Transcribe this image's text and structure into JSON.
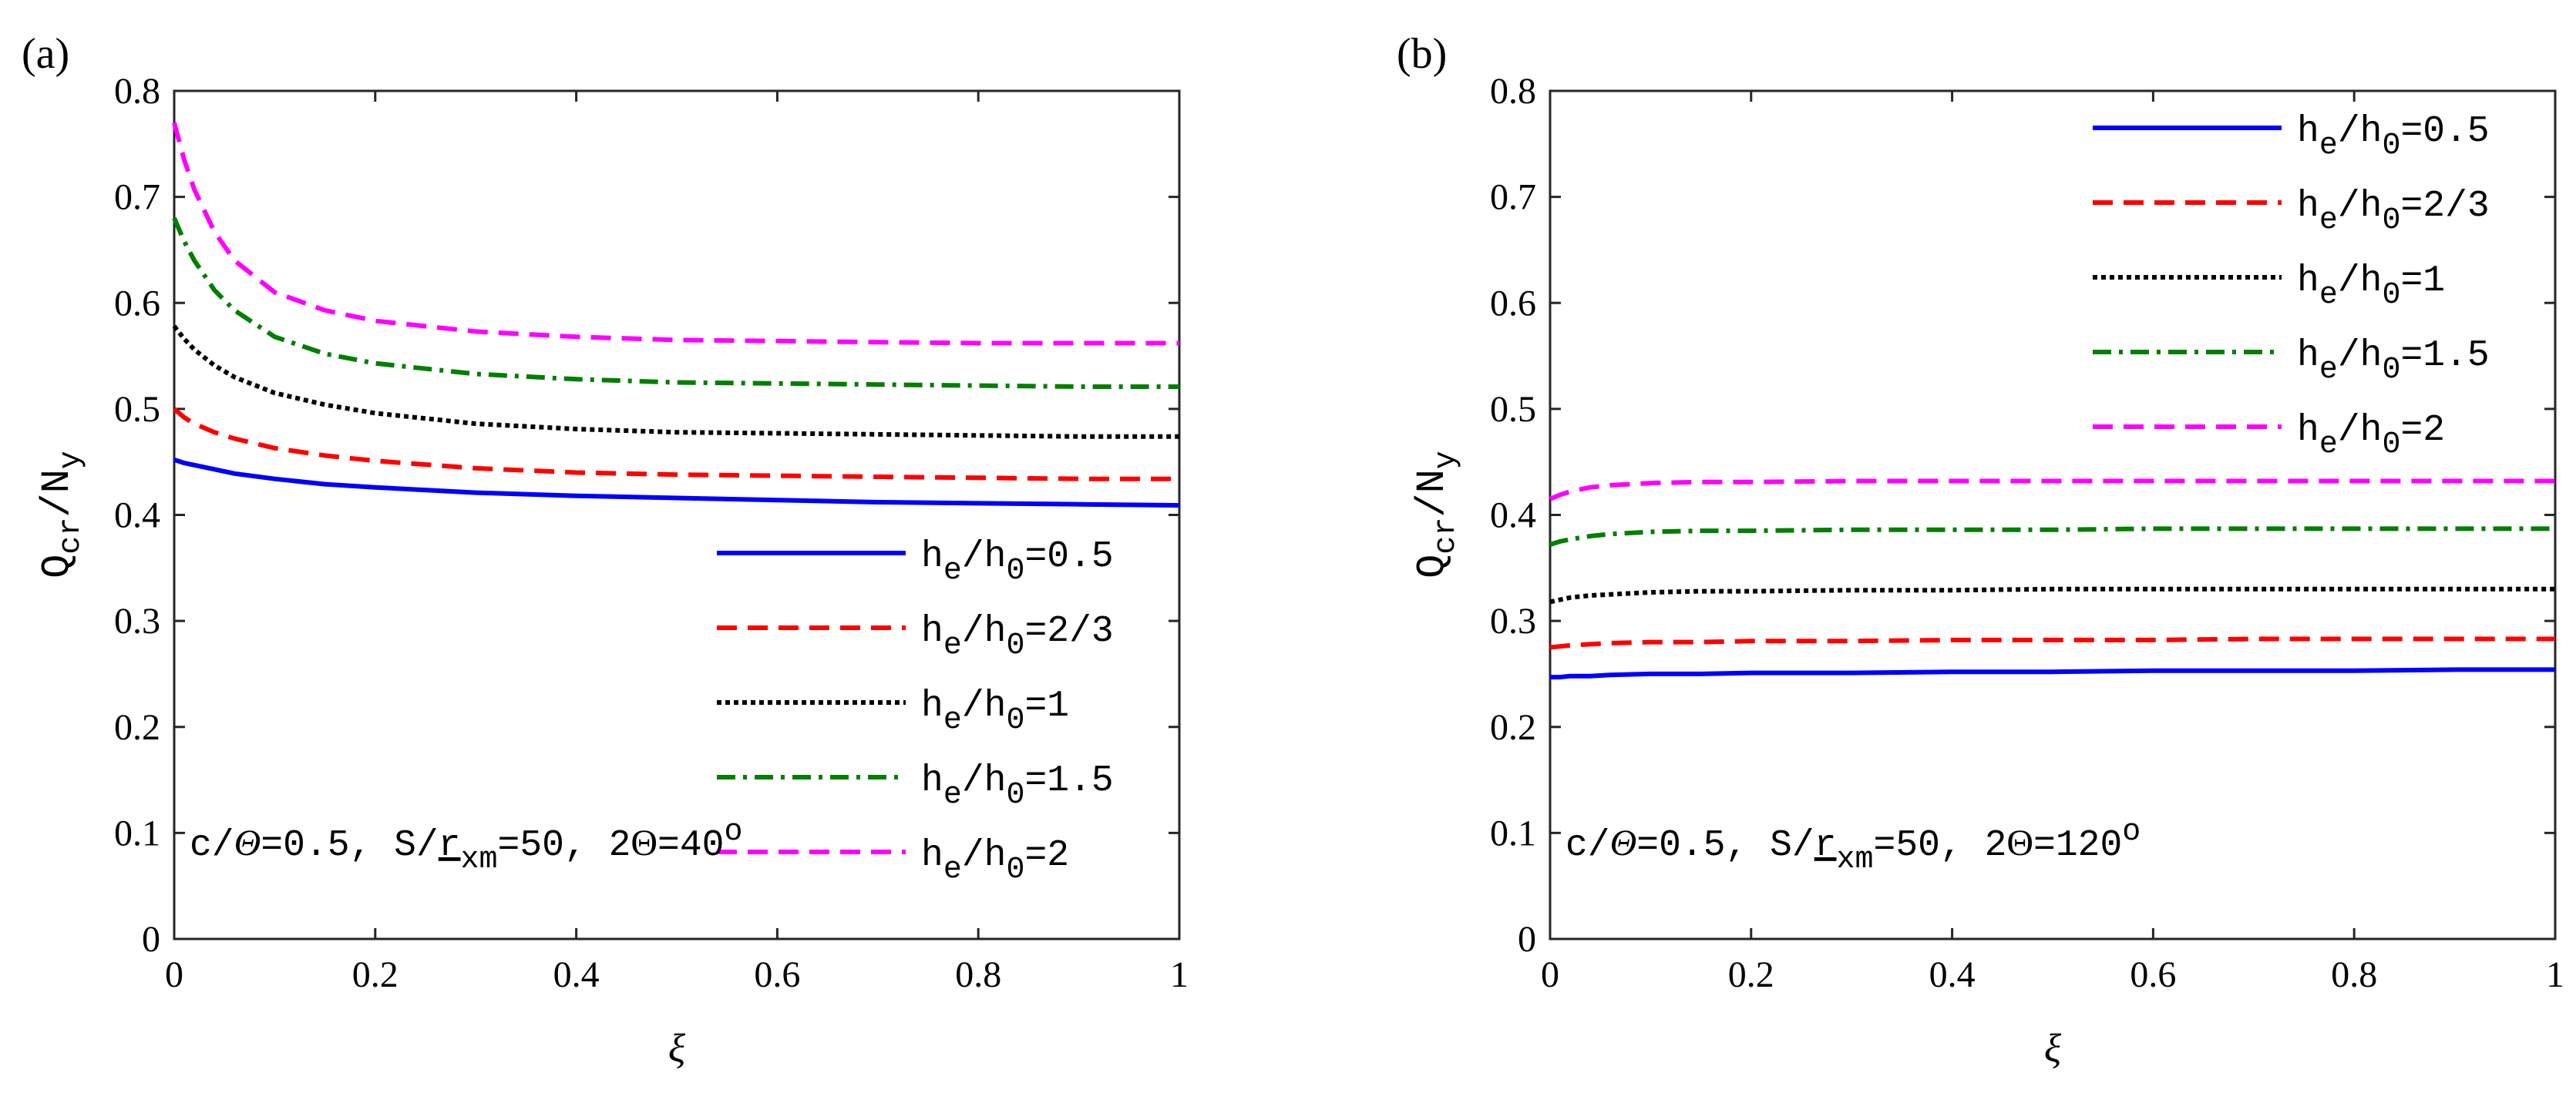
{
  "chart_data": [
    {
      "type": "line",
      "panel_label": "(a)",
      "xlabel": "ξ",
      "ylabel": {
        "main": "Q",
        "sub1": "cr",
        "sep": "/N",
        "sub2": "y"
      },
      "xlim": [
        0,
        1
      ],
      "ylim": [
        0,
        0.8
      ],
      "xticks": [
        "0",
        "0.2",
        "0.4",
        "0.6",
        "0.8",
        "1"
      ],
      "yticks": [
        "0",
        "0.1",
        "0.2",
        "0.3",
        "0.4",
        "0.5",
        "0.6",
        "0.7",
        "0.8"
      ],
      "grid": false,
      "legend_position": "bottom-right",
      "annotation": {
        "p1": "c/",
        "theta": "Θ",
        "p2": "=0.5, S/",
        "r": "r",
        "sub": "xm",
        "p3": "=50, 2",
        "theta2": "Θ",
        "p4": "=40",
        "sup": "o"
      },
      "x": [
        0,
        0.01,
        0.02,
        0.04,
        0.06,
        0.1,
        0.15,
        0.2,
        0.3,
        0.4,
        0.5,
        0.6,
        0.7,
        0.8,
        0.9,
        1.0
      ],
      "series": [
        {
          "name": "he/h0=0.5",
          "label": {
            "h": "h",
            "s1": "e",
            "mid": "/h",
            "s2": "0",
            "val": "=0.5"
          },
          "color": "#0000ff",
          "dash": "solid",
          "values": [
            0.452,
            0.449,
            0.447,
            0.443,
            0.439,
            0.434,
            0.429,
            0.426,
            0.421,
            0.418,
            0.416,
            0.414,
            0.412,
            0.411,
            0.41,
            0.409
          ]
        },
        {
          "name": "he/h0=2/3",
          "label": {
            "h": "h",
            "s1": "e",
            "mid": "/h",
            "s2": "0",
            "val": "=2/3"
          },
          "color": "#ff0000",
          "dash": "dashed",
          "values": [
            0.5,
            0.492,
            0.486,
            0.478,
            0.472,
            0.463,
            0.456,
            0.451,
            0.444,
            0.44,
            0.438,
            0.437,
            0.436,
            0.435,
            0.434,
            0.434
          ]
        },
        {
          "name": "he/h0=1",
          "label": {
            "h": "h",
            "s1": "e",
            "mid": "/h",
            "s2": "0",
            "val": "=1"
          },
          "color": "#000000",
          "dash": "dotted",
          "values": [
            0.578,
            0.566,
            0.556,
            0.541,
            0.53,
            0.515,
            0.504,
            0.496,
            0.486,
            0.481,
            0.478,
            0.477,
            0.476,
            0.475,
            0.474,
            0.474
          ]
        },
        {
          "name": "he/h0=1.5",
          "label": {
            "h": "h",
            "s1": "e",
            "mid": "/h",
            "s2": "0",
            "val": "=1.5"
          },
          "color": "#007f00",
          "dash": "dashdot",
          "values": [
            0.68,
            0.658,
            0.64,
            0.612,
            0.593,
            0.568,
            0.552,
            0.543,
            0.533,
            0.528,
            0.525,
            0.524,
            0.523,
            0.522,
            0.521,
            0.521
          ]
        },
        {
          "name": "he/h0=2",
          "label": {
            "h": "h",
            "s1": "e",
            "mid": "/h",
            "s2": "0",
            "val": "=2"
          },
          "color": "#ff00ff",
          "dash": "dashed",
          "values": [
            0.77,
            0.735,
            0.707,
            0.667,
            0.64,
            0.61,
            0.593,
            0.583,
            0.573,
            0.568,
            0.565,
            0.564,
            0.563,
            0.562,
            0.562,
            0.562
          ]
        }
      ]
    },
    {
      "type": "line",
      "panel_label": "(b)",
      "xlabel": "ξ",
      "ylabel": {
        "main": "Q",
        "sub1": "cr",
        "sep": "/N",
        "sub2": "y"
      },
      "xlim": [
        0,
        1
      ],
      "ylim": [
        0,
        0.8
      ],
      "xticks": [
        "0",
        "0.2",
        "0.4",
        "0.6",
        "0.8",
        "1"
      ],
      "yticks": [
        "0",
        "0.1",
        "0.2",
        "0.3",
        "0.4",
        "0.5",
        "0.6",
        "0.7",
        "0.8"
      ],
      "grid": false,
      "legend_position": "top-right",
      "annotation": {
        "p1": "c/",
        "theta": "Θ",
        "p2": "=0.5, S/",
        "r": "r",
        "sub": "xm",
        "p3": "=50, 2",
        "theta2": "Θ",
        "p4": "=120",
        "sup": "o"
      },
      "x": [
        0,
        0.01,
        0.02,
        0.04,
        0.06,
        0.1,
        0.15,
        0.2,
        0.3,
        0.4,
        0.5,
        0.6,
        0.7,
        0.8,
        0.9,
        1.0
      ],
      "series": [
        {
          "name": "he/h0=0.5",
          "label": {
            "h": "h",
            "s1": "e",
            "mid": "/h",
            "s2": "0",
            "val": "=0.5"
          },
          "color": "#0000ff",
          "dash": "solid",
          "values": [
            0.247,
            0.247,
            0.248,
            0.248,
            0.249,
            0.25,
            0.25,
            0.251,
            0.251,
            0.252,
            0.252,
            0.253,
            0.253,
            0.253,
            0.254,
            0.254
          ]
        },
        {
          "name": "he/h0=2/3",
          "label": {
            "h": "h",
            "s1": "e",
            "mid": "/h",
            "s2": "0",
            "val": "=2/3"
          },
          "color": "#ff0000",
          "dash": "dashed",
          "values": [
            0.275,
            0.276,
            0.277,
            0.278,
            0.279,
            0.28,
            0.28,
            0.281,
            0.281,
            0.282,
            0.282,
            0.282,
            0.283,
            0.283,
            0.283,
            0.283
          ]
        },
        {
          "name": "he/h0=1",
          "label": {
            "h": "h",
            "s1": "e",
            "mid": "/h",
            "s2": "0",
            "val": "=1"
          },
          "color": "#000000",
          "dash": "dotted",
          "values": [
            0.318,
            0.32,
            0.322,
            0.324,
            0.325,
            0.327,
            0.328,
            0.328,
            0.329,
            0.329,
            0.33,
            0.33,
            0.33,
            0.33,
            0.33,
            0.33
          ]
        },
        {
          "name": "he/h0=1.5",
          "label": {
            "h": "h",
            "s1": "e",
            "mid": "/h",
            "s2": "0",
            "val": "=1.5"
          },
          "color": "#007f00",
          "dash": "dashdot",
          "values": [
            0.372,
            0.375,
            0.377,
            0.38,
            0.382,
            0.384,
            0.385,
            0.385,
            0.386,
            0.386,
            0.386,
            0.387,
            0.387,
            0.387,
            0.387,
            0.387
          ]
        },
        {
          "name": "he/h0=2",
          "label": {
            "h": "h",
            "s1": "e",
            "mid": "/h",
            "s2": "0",
            "val": "=2"
          },
          "color": "#ff00ff",
          "dash": "dashed",
          "values": [
            0.415,
            0.419,
            0.422,
            0.426,
            0.428,
            0.43,
            0.431,
            0.431,
            0.432,
            0.432,
            0.432,
            0.432,
            0.432,
            0.432,
            0.432,
            0.432
          ]
        }
      ]
    }
  ]
}
